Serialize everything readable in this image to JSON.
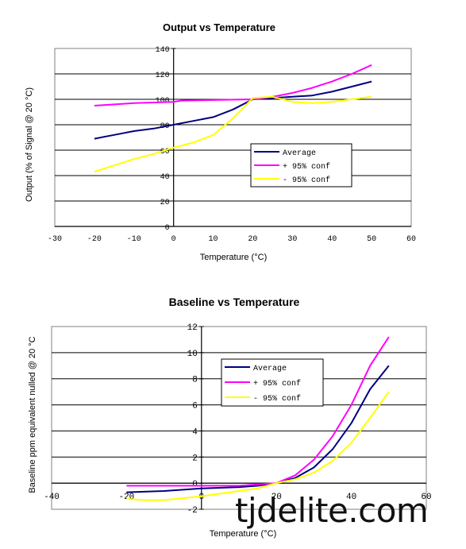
{
  "charts": [
    {
      "title": "Output vs Temperature",
      "xlabel": "Temperature (°C)",
      "ylabel": "Output (% of Signal @ 20 °C)"
    },
    {
      "title": "Baseline vs Temperature",
      "xlabel": "Temperature (°C)",
      "ylabel": "Baseline ppm equivalent nulled @ 20 °C"
    }
  ],
  "watermark": "tjdelite.com",
  "chart_data": [
    {
      "type": "line",
      "title": "Output vs Temperature",
      "xlabel": "Temperature (°C)",
      "ylabel": "Output (% of Signal @ 20 °C)",
      "xlim": [
        -30,
        60
      ],
      "ylim": [
        0,
        140
      ],
      "xticks": [
        -30,
        -20,
        -10,
        0,
        10,
        20,
        30,
        40,
        50,
        60
      ],
      "yticks": [
        0,
        20,
        40,
        60,
        80,
        100,
        120,
        140
      ],
      "grid": "horizontal",
      "legend_position": "lower-right",
      "series": [
        {
          "name": "Average",
          "color": "#000080",
          "x": [
            -20,
            -15,
            -10,
            -5,
            0,
            5,
            10,
            15,
            20,
            25,
            30,
            35,
            40,
            45,
            50
          ],
          "y": [
            69,
            72,
            75,
            77,
            80,
            83,
            86,
            92,
            100,
            101,
            102,
            103,
            106,
            110,
            114
          ]
        },
        {
          "name": "+ 95% conf",
          "color": "#ff00ff",
          "x": [
            -20,
            -10,
            0,
            2,
            20,
            25,
            30,
            35,
            40,
            45,
            50
          ],
          "y": [
            95,
            97,
            98,
            99,
            100,
            102,
            105,
            109,
            114,
            120,
            127
          ]
        },
        {
          "name": "- 95% conf",
          "color": "#ffff00",
          "x": [
            -20,
            -15,
            -10,
            -5,
            0,
            5,
            10,
            15,
            20,
            25,
            30,
            35,
            40,
            45,
            50
          ],
          "y": [
            43,
            48,
            53,
            57,
            62,
            66,
            72,
            85,
            101,
            102,
            98,
            97,
            98,
            100,
            102
          ]
        }
      ]
    },
    {
      "type": "line",
      "title": "Baseline vs Temperature",
      "xlabel": "Temperature (°C)",
      "ylabel": "Baseline ppm equivalent nulled @ 20 °C",
      "xlim": [
        -40,
        60
      ],
      "ylim": [
        -2,
        12
      ],
      "xticks": [
        -40,
        -20,
        0,
        20,
        40,
        60
      ],
      "yticks": [
        -2,
        0,
        2,
        4,
        6,
        8,
        10,
        12
      ],
      "grid": "horizontal",
      "legend_position": "upper-center",
      "series": [
        {
          "name": "Average",
          "color": "#000080",
          "x": [
            -20,
            -10,
            0,
            10,
            15,
            20,
            25,
            30,
            35,
            40,
            45,
            50
          ],
          "y": [
            -0.7,
            -0.6,
            -0.4,
            -0.3,
            -0.2,
            0,
            0.4,
            1.2,
            2.6,
            4.6,
            7.2,
            9.0
          ]
        },
        {
          "name": "+ 95% conf",
          "color": "#ff00ff",
          "x": [
            -20,
            -10,
            0,
            10,
            15,
            20,
            25,
            30,
            35,
            40,
            45,
            50
          ],
          "y": [
            -0.2,
            -0.2,
            -0.2,
            -0.2,
            -0.1,
            0,
            0.6,
            1.8,
            3.6,
            6.0,
            9.0,
            11.2
          ]
        },
        {
          "name": "- 95% conf",
          "color": "#ffff00",
          "x": [
            -20,
            -15,
            -10,
            0,
            10,
            15,
            20,
            25,
            30,
            35,
            40,
            45,
            50
          ],
          "y": [
            -1.2,
            -1.3,
            -1.3,
            -1.0,
            -0.6,
            -0.4,
            0,
            0.3,
            0.8,
            1.7,
            3.1,
            5.0,
            7.0
          ]
        }
      ]
    }
  ]
}
